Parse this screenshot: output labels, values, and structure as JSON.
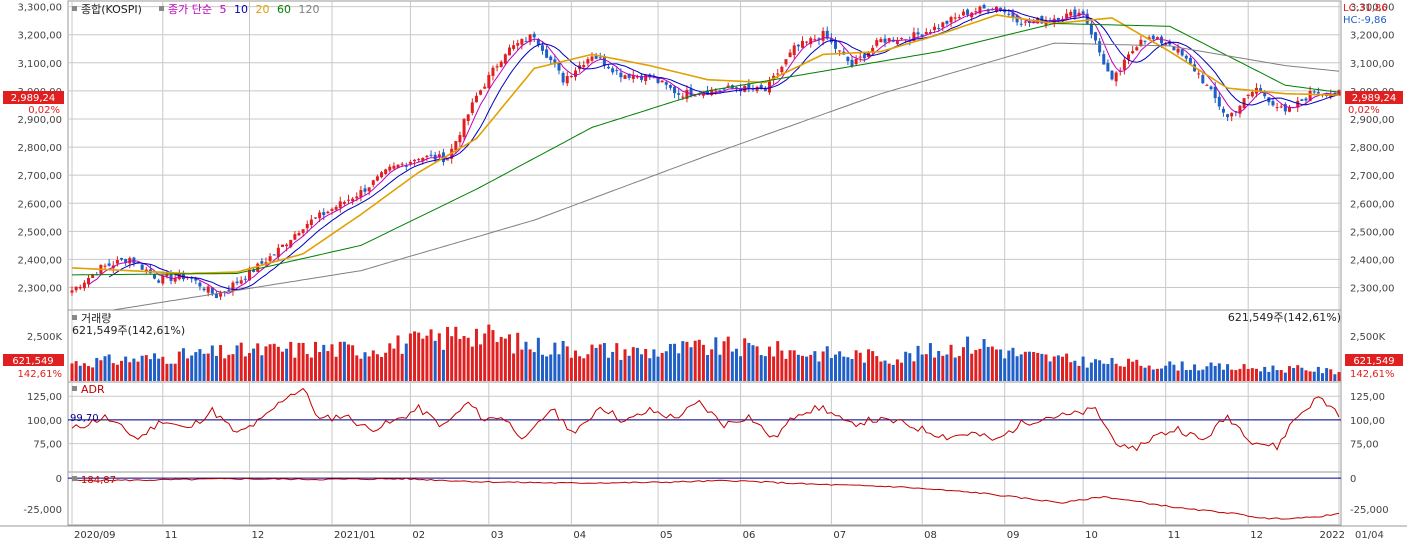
{
  "chart_data": {
    "type": "candlestick",
    "title": "",
    "price": {
      "label": "종합(KOSPI)",
      "ylim": [
        2220,
        3320
      ],
      "y_ticks": [
        "3,300,00",
        "3,200,00",
        "3,100,00",
        "3,000,00",
        "2,900,00",
        "2,800,00",
        "2,700,00",
        "2,600,00",
        "2,500,00",
        "2,400,00",
        "2,300,00"
      ],
      "y_tick_values": [
        3300,
        3200,
        3100,
        3000,
        2900,
        2800,
        2700,
        2600,
        2500,
        2400,
        2300
      ],
      "ma_legend": {
        "prefix": "종가 단순",
        "periods": [
          "5",
          "10",
          "20",
          "60",
          "120"
        ],
        "colors": [
          "#c000c0",
          "#0000c0",
          "#e0a000",
          "#008000",
          "#808080"
        ]
      },
      "current_price_label": "2,989,24",
      "current_change_label": "0,02%",
      "current_price": 2989.24,
      "lc_label": "LC:31,86",
      "hc_label": "HC:-9,86",
      "anchors_x": [
        0,
        7,
        14,
        21,
        28,
        35,
        42,
        49,
        56,
        63,
        70,
        77,
        84,
        91,
        98,
        105,
        112,
        119,
        126,
        133,
        140,
        147,
        154,
        161,
        168,
        175,
        182,
        189,
        196,
        203,
        210,
        217,
        224,
        231,
        238,
        245,
        252,
        259,
        266,
        273,
        280,
        287,
        294,
        301,
        307
      ],
      "anchors_close": [
        2290,
        2370,
        2405,
        2330,
        2340,
        2270,
        2340,
        2420,
        2520,
        2580,
        2640,
        2720,
        2765,
        2760,
        2980,
        3140,
        3200,
        3040,
        3130,
        3060,
        3050,
        2990,
        3000,
        3010,
        3000,
        3150,
        3200,
        3090,
        3180,
        3190,
        3230,
        3280,
        3300,
        3240,
        3260,
        3280,
        3030,
        3190,
        3170,
        3060,
        2905,
        3010,
        2920,
        3000,
        2989
      ],
      "ma_lines": [
        {
          "name": "20",
          "color": "#e0a000",
          "x": [
            0,
            28,
            40,
            56,
            70,
            84,
            98,
            112,
            126,
            140,
            154,
            168,
            182,
            196,
            210,
            224,
            238,
            252,
            266,
            280,
            294,
            307
          ],
          "values": [
            2370,
            2350,
            2355,
            2420,
            2560,
            2710,
            2830,
            3080,
            3130,
            3090,
            3040,
            3030,
            3130,
            3140,
            3200,
            3270,
            3240,
            3260,
            3140,
            3010,
            2990,
            2985
          ]
        },
        {
          "name": "60",
          "color": "#008000",
          "x": [
            0,
            40,
            70,
            98,
            126,
            154,
            182,
            210,
            238,
            266,
            294,
            307
          ],
          "values": [
            2345,
            2350,
            2450,
            2650,
            2870,
            3000,
            3070,
            3140,
            3240,
            3230,
            3020,
            2995
          ]
        },
        {
          "name": "120",
          "color": "#808080",
          "x": [
            10,
            70,
            112,
            154,
            196,
            238,
            266,
            294,
            307
          ],
          "values": [
            2220,
            2360,
            2540,
            2770,
            2990,
            3170,
            3160,
            3090,
            3070
          ]
        }
      ]
    },
    "volume": {
      "label": "거래량",
      "value_label": "621,549주(142,61%)",
      "tick": "2,500K",
      "current_label": "621,549",
      "current_pct_label": "142,61%",
      "current_value": 621549,
      "anchors_x": [
        0,
        20,
        40,
        60,
        70,
        80,
        90,
        95,
        100,
        110,
        120,
        130,
        140,
        150,
        160,
        170,
        180,
        190,
        200,
        210,
        220,
        230,
        240,
        250,
        260,
        270,
        280,
        290,
        300,
        307
      ],
      "anchors_value": [
        1200000,
        1500000,
        1900000,
        2100000,
        2000000,
        2400000,
        2700000,
        3300000,
        2900000,
        2300000,
        2100000,
        2000000,
        1900000,
        2100000,
        2200000,
        2000000,
        1800000,
        1700000,
        1500000,
        2000000,
        2400000,
        1700000,
        1400000,
        1200000,
        1100000,
        1000000,
        900000,
        850000,
        800000,
        621549
      ],
      "ylim": [
        0,
        4500000
      ]
    },
    "adr": {
      "label": "ADR",
      "value_label": "99,70",
      "reference": 100,
      "y_ticks": [
        "125,00",
        "100,00",
        "75,00"
      ],
      "y_tick_values": [
        125,
        100,
        75
      ],
      "ylim": [
        45,
        140
      ],
      "anchors_x": [
        0,
        8,
        16,
        22,
        28,
        34,
        40,
        46,
        52,
        56,
        60,
        66,
        72,
        78,
        84,
        90,
        96,
        100,
        104,
        110,
        116,
        122,
        128,
        134,
        140,
        146,
        152,
        158,
        164,
        170,
        176,
        182,
        188,
        194,
        200,
        206,
        212,
        218,
        224,
        230,
        236,
        242,
        248,
        252,
        256,
        262,
        268,
        274,
        280,
        286,
        292,
        296,
        302,
        307
      ],
      "values": [
        90,
        103,
        80,
        100,
        90,
        110,
        85,
        100,
        125,
        133,
        100,
        105,
        90,
        98,
        112,
        93,
        118,
        100,
        104,
        79,
        112,
        85,
        115,
        98,
        110,
        102,
        118,
        95,
        104,
        80,
        108,
        113,
        95,
        100,
        98,
        90,
        82,
        86,
        78,
        96,
        103,
        105,
        111,
        82,
        66,
        82,
        91,
        78,
        104,
        78,
        71,
        100,
        124,
        107
      ]
    },
    "osc": {
      "label": "184,87",
      "y_ticks": [
        "0",
        "-25,000"
      ],
      "y_tick_values": [
        0,
        -25000
      ],
      "ylim": [
        -38000,
        5000
      ],
      "reference": 0,
      "anchors_x": [
        0,
        20,
        40,
        60,
        80,
        100,
        120,
        140,
        160,
        180,
        200,
        220,
        230,
        240,
        250,
        260,
        270,
        280,
        290,
        300,
        307
      ],
      "values": [
        -2000,
        -1500,
        -500,
        -1000,
        -500,
        -3000,
        -4000,
        -3500,
        -2000,
        -5000,
        -7000,
        -12000,
        -16000,
        -20000,
        -15000,
        -20000,
        -25000,
        -28000,
        -33000,
        -32000,
        -29000
      ]
    },
    "x_ticks": [
      {
        "label": "2020/09",
        "i": 0
      },
      {
        "label": "11",
        "i": 22
      },
      {
        "label": "12",
        "i": 43
      },
      {
        "label": "2021/01",
        "i": 63
      },
      {
        "label": "02",
        "i": 82
      },
      {
        "label": "03",
        "i": 101
      },
      {
        "label": "04",
        "i": 121
      },
      {
        "label": "05",
        "i": 142
      },
      {
        "label": "06",
        "i": 162
      },
      {
        "label": "07",
        "i": 184
      },
      {
        "label": "08",
        "i": 206
      },
      {
        "label": "09",
        "i": 226
      },
      {
        "label": "10",
        "i": 245
      },
      {
        "label": "11",
        "i": 265
      },
      {
        "label": "12",
        "i": 285
      },
      {
        "label": "2022",
        "i": 307
      }
    ],
    "x_last_label": "01/04",
    "n_bars": 308,
    "colors": {
      "up": "#e02020",
      "down": "#1f5fc8",
      "grid": "#c8c8c8",
      "panel_border": "#9a9a9a",
      "adr_line": "#c00000",
      "ref_line": "#00008b",
      "price_tag_bg": "#e02020",
      "hc": "#1f5fc8",
      "lc": "#e02020"
    }
  }
}
